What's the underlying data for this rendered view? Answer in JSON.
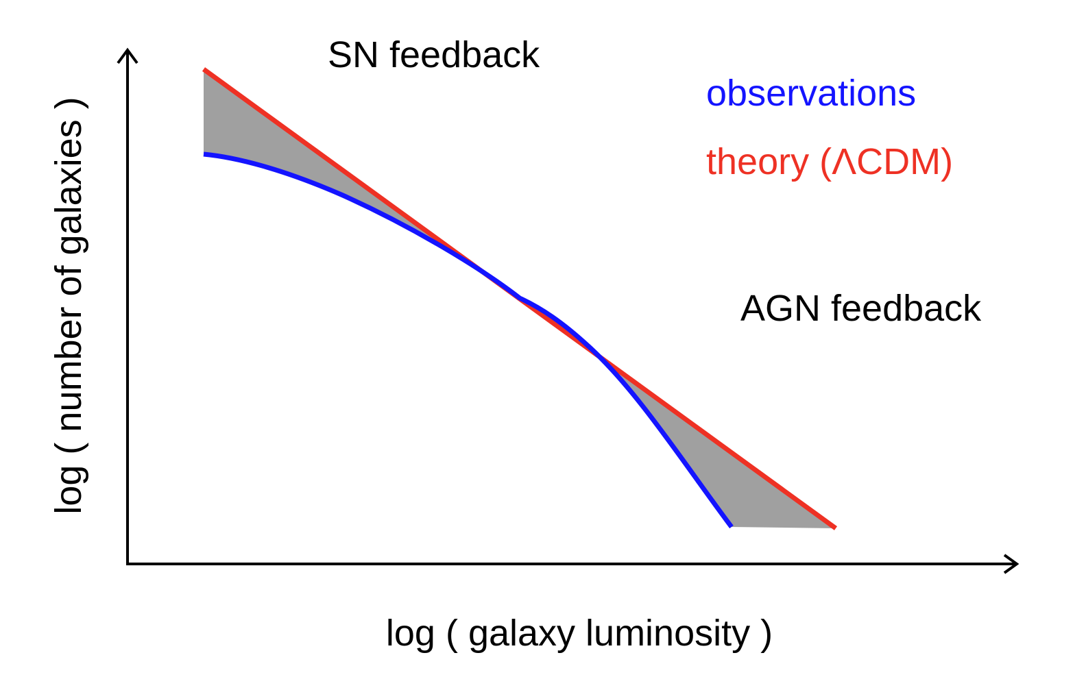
{
  "diagram": {
    "x_axis_label": "log ( galaxy luminosity )",
    "y_axis_label": "log ( number of galaxies )",
    "annotations": {
      "sn_feedback": "SN feedback",
      "agn_feedback": "AGN feedback"
    },
    "legend": {
      "observations": "observations",
      "theory": "theory (ΛCDM)"
    },
    "colors": {
      "observations": "#1414ff",
      "theory": "#ee3124",
      "shaded_region": "#a0a0a0",
      "axes": "#000000",
      "annotation_text": "#000000"
    }
  }
}
